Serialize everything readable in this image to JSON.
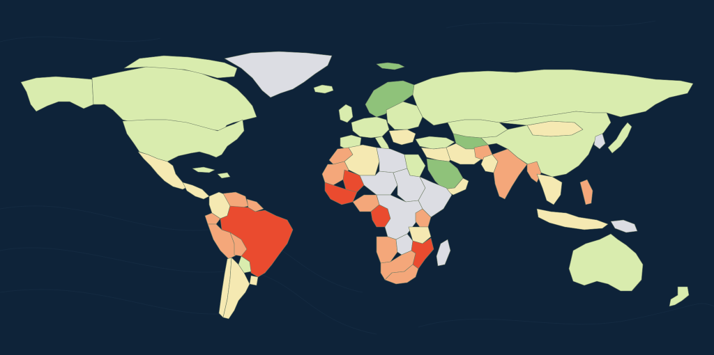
{
  "map": {
    "background_color": "#0e2339",
    "legend_visible": false,
    "text_labels_visible": false,
    "palette": {
      "light-green": "#d9ecae",
      "mid-green": "#8fc27a",
      "light-yellow": "#f5e9b2",
      "light-orange": "#f4a77a",
      "red-orange": "#ea4b2f",
      "light-gray": "#dcdde3"
    },
    "regions": [
      {
        "id": "alaska",
        "category": "light-green"
      },
      {
        "id": "canada",
        "category": "light-green"
      },
      {
        "id": "arctic-islands",
        "category": "light-green"
      },
      {
        "id": "united-states",
        "category": "light-green"
      },
      {
        "id": "greenland",
        "category": "light-gray"
      },
      {
        "id": "iceland",
        "category": "light-green"
      },
      {
        "id": "svalbard",
        "category": "mid-green"
      },
      {
        "id": "mexico",
        "category": "light-yellow"
      },
      {
        "id": "central-america",
        "category": "light-yellow"
      },
      {
        "id": "cuba",
        "category": "light-green"
      },
      {
        "id": "hispaniola",
        "category": "light-green"
      },
      {
        "id": "colombia",
        "category": "light-yellow"
      },
      {
        "id": "venezuela",
        "category": "light-orange"
      },
      {
        "id": "guianas",
        "category": "light-orange"
      },
      {
        "id": "ecuador",
        "category": "light-orange"
      },
      {
        "id": "peru",
        "category": "light-orange"
      },
      {
        "id": "brazil",
        "category": "red-orange"
      },
      {
        "id": "bolivia",
        "category": "light-orange"
      },
      {
        "id": "paraguay",
        "category": "light-green"
      },
      {
        "id": "uruguay",
        "category": "light-yellow"
      },
      {
        "id": "chile",
        "category": "light-yellow"
      },
      {
        "id": "argentina",
        "category": "light-yellow"
      },
      {
        "id": "uk-ireland",
        "category": "light-green"
      },
      {
        "id": "scandinavia",
        "category": "mid-green"
      },
      {
        "id": "western-europe",
        "category": "light-green"
      },
      {
        "id": "iberia",
        "category": "light-green"
      },
      {
        "id": "italy",
        "category": "light-green"
      },
      {
        "id": "eastern-europe",
        "category": "light-green"
      },
      {
        "id": "balkans",
        "category": "light-yellow"
      },
      {
        "id": "russia",
        "category": "light-green"
      },
      {
        "id": "turkey",
        "category": "light-green"
      },
      {
        "id": "kazakhstan",
        "category": "light-green"
      },
      {
        "id": "central-asia",
        "category": "mid-green"
      },
      {
        "id": "mongolia",
        "category": "light-yellow"
      },
      {
        "id": "china",
        "category": "light-green"
      },
      {
        "id": "korea",
        "category": "light-gray"
      },
      {
        "id": "japan",
        "category": "light-green"
      },
      {
        "id": "middle-east-west",
        "category": "light-yellow"
      },
      {
        "id": "iran",
        "category": "light-yellow"
      },
      {
        "id": "saudi-arabia",
        "category": "mid-green"
      },
      {
        "id": "yemen-oman",
        "category": "light-yellow"
      },
      {
        "id": "afghanistan",
        "category": "light-orange"
      },
      {
        "id": "pakistan",
        "category": "light-yellow"
      },
      {
        "id": "india",
        "category": "light-orange"
      },
      {
        "id": "bangladesh-myanmar",
        "category": "light-orange"
      },
      {
        "id": "mainland-southeast-asia",
        "category": "light-yellow"
      },
      {
        "id": "philippines",
        "category": "light-orange"
      },
      {
        "id": "indonesia",
        "category": "light-yellow"
      },
      {
        "id": "new-guinea",
        "category": "light-gray"
      },
      {
        "id": "morocco",
        "category": "light-orange"
      },
      {
        "id": "algeria",
        "category": "light-yellow"
      },
      {
        "id": "libya",
        "category": "light-gray"
      },
      {
        "id": "egypt",
        "category": "light-green"
      },
      {
        "id": "west-africa-coast",
        "category": "light-orange"
      },
      {
        "id": "mali",
        "category": "red-orange"
      },
      {
        "id": "west-africa-south",
        "category": "red-orange"
      },
      {
        "id": "niger-chad",
        "category": "light-gray"
      },
      {
        "id": "sudan",
        "category": "light-gray"
      },
      {
        "id": "horn-of-africa",
        "category": "light-gray"
      },
      {
        "id": "nigeria",
        "category": "light-orange"
      },
      {
        "id": "central-africa",
        "category": "red-orange"
      },
      {
        "id": "congo-basin",
        "category": "light-gray"
      },
      {
        "id": "east-africa",
        "category": "light-orange"
      },
      {
        "id": "tanzania",
        "category": "light-yellow"
      },
      {
        "id": "angola",
        "category": "light-orange"
      },
      {
        "id": "zambia",
        "category": "light-gray"
      },
      {
        "id": "mozambique",
        "category": "red-orange"
      },
      {
        "id": "namibia-botswana",
        "category": "light-orange"
      },
      {
        "id": "south-africa",
        "category": "light-orange"
      },
      {
        "id": "madagascar",
        "category": "light-gray"
      },
      {
        "id": "australia",
        "category": "light-green"
      },
      {
        "id": "new-zealand",
        "category": "light-green"
      }
    ]
  }
}
